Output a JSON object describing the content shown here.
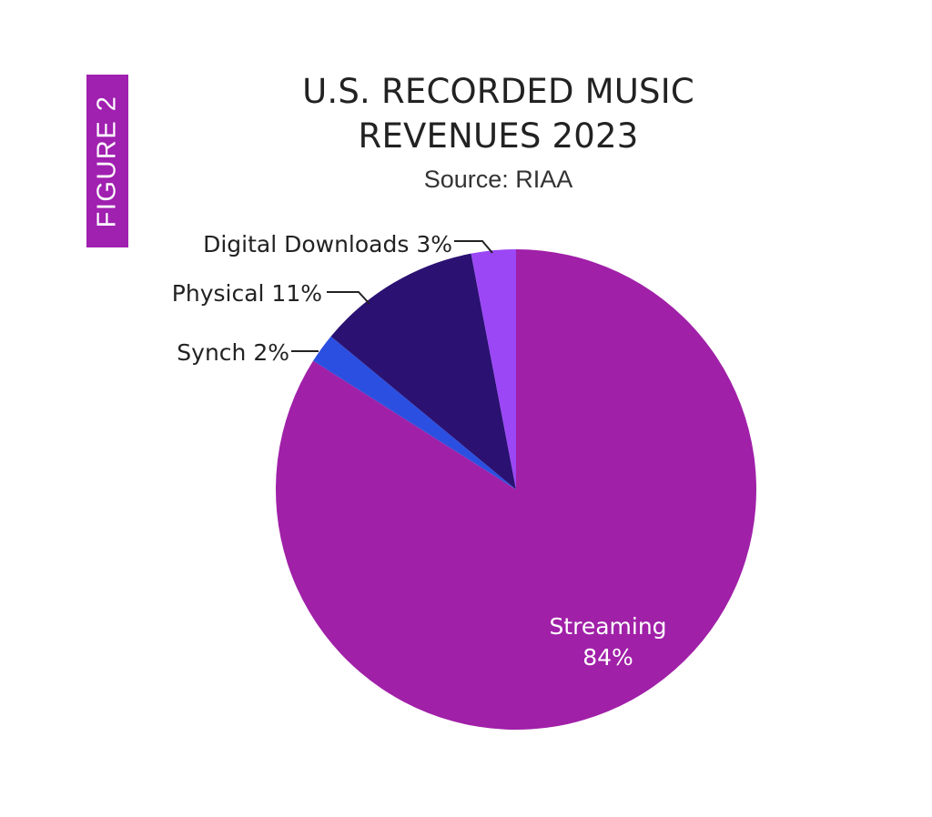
{
  "figure_tab": "FIGURE 2",
  "chart_data": {
    "type": "pie",
    "title": [
      "U.S. RECORDED MUSIC",
      "REVENUES 2023"
    ],
    "subtitle": "Source: RIAA",
    "slices": [
      {
        "name": "Streaming",
        "value": 84,
        "label_name": "Streaming",
        "label_value": "84%",
        "color": "#a020a8"
      },
      {
        "name": "Synch",
        "value": 2,
        "label": "Synch 2%",
        "color": "#2b4fe0"
      },
      {
        "name": "Physical",
        "value": 11,
        "label": "Physical 11%",
        "color": "#2a1172"
      },
      {
        "name": "Digital Downloads",
        "value": 3,
        "label": "Digital Downloads 3%",
        "color": "#9b47f5"
      }
    ]
  }
}
